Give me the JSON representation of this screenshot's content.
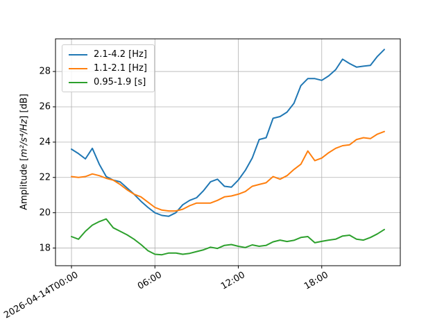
{
  "figure": {
    "background": "#ffffff",
    "border_color": "#000000"
  },
  "chart_data": {
    "type": "line",
    "title": "",
    "xlabel": "",
    "ylabel": {
      "prefix": "Amplitude [",
      "math": "m²/s⁴/Hz",
      "suffix": "] [dB]"
    },
    "x_unit": "hours since 2026-04-14T00:00, 30-minute samples",
    "grid": true,
    "grid_color": "#b0b0b0",
    "legend_position": "upper left",
    "xlim": [
      -1.15,
      23.65
    ],
    "ylim": [
      17.0,
      29.85
    ],
    "yticks": [
      18,
      20,
      22,
      24,
      26,
      28
    ],
    "xticks": [
      {
        "hour": 0,
        "label": "2026-04-14T00:00"
      },
      {
        "hour": 6,
        "label": "06:00"
      },
      {
        "hour": 12,
        "label": "12:00"
      },
      {
        "hour": 18,
        "label": "18:00"
      }
    ],
    "x": [
      0,
      0.5,
      1,
      1.5,
      2,
      2.5,
      3,
      3.5,
      4,
      4.5,
      5,
      5.5,
      6,
      6.5,
      7,
      7.5,
      8,
      8.5,
      9,
      9.5,
      10,
      10.5,
      11,
      11.5,
      12,
      12.5,
      13,
      13.5,
      14,
      14.5,
      15,
      15.5,
      16,
      16.5,
      17,
      17.5,
      18,
      18.5,
      19,
      19.5,
      20,
      20.5,
      21,
      21.5,
      22,
      22.5
    ],
    "series": [
      {
        "name": "2.1-4.2 [Hz]",
        "color": "#1f77b4",
        "values": [
          23.6,
          23.35,
          23.05,
          23.65,
          22.75,
          22.05,
          21.85,
          21.75,
          21.4,
          21.05,
          20.65,
          20.3,
          20.0,
          19.85,
          19.8,
          20.0,
          20.45,
          20.7,
          20.85,
          21.25,
          21.75,
          21.9,
          21.5,
          21.45,
          21.85,
          22.4,
          23.1,
          24.15,
          24.25,
          25.35,
          25.45,
          25.7,
          26.2,
          27.2,
          27.6,
          27.6,
          27.5,
          27.75,
          28.1,
          28.7,
          28.45,
          28.25,
          28.3,
          28.35,
          28.85,
          29.25
        ]
      },
      {
        "name": "1.1-2.1 [Hz]",
        "color": "#ff7f0e",
        "values": [
          22.05,
          22.0,
          22.05,
          22.2,
          22.1,
          21.95,
          21.85,
          21.6,
          21.3,
          21.05,
          20.9,
          20.6,
          20.3,
          20.15,
          20.1,
          20.1,
          20.2,
          20.4,
          20.55,
          20.55,
          20.55,
          20.7,
          20.9,
          20.95,
          21.05,
          21.2,
          21.5,
          21.6,
          21.7,
          22.05,
          21.9,
          22.1,
          22.45,
          22.75,
          23.5,
          22.95,
          23.1,
          23.4,
          23.65,
          23.8,
          23.85,
          24.15,
          24.25,
          24.2,
          24.45,
          24.6
        ]
      },
      {
        "name": "0.95-1.9 [s]",
        "color": "#2ca02c",
        "values": [
          18.65,
          18.5,
          18.95,
          19.3,
          19.5,
          19.65,
          19.15,
          18.95,
          18.75,
          18.5,
          18.2,
          17.85,
          17.65,
          17.62,
          17.72,
          17.72,
          17.65,
          17.7,
          17.8,
          17.9,
          18.05,
          17.98,
          18.15,
          18.2,
          18.1,
          18.03,
          18.18,
          18.1,
          18.15,
          18.35,
          18.45,
          18.37,
          18.44,
          18.6,
          18.65,
          18.3,
          18.38,
          18.45,
          18.5,
          18.68,
          18.73,
          18.5,
          18.45,
          18.6,
          18.8,
          19.05
        ]
      }
    ]
  }
}
